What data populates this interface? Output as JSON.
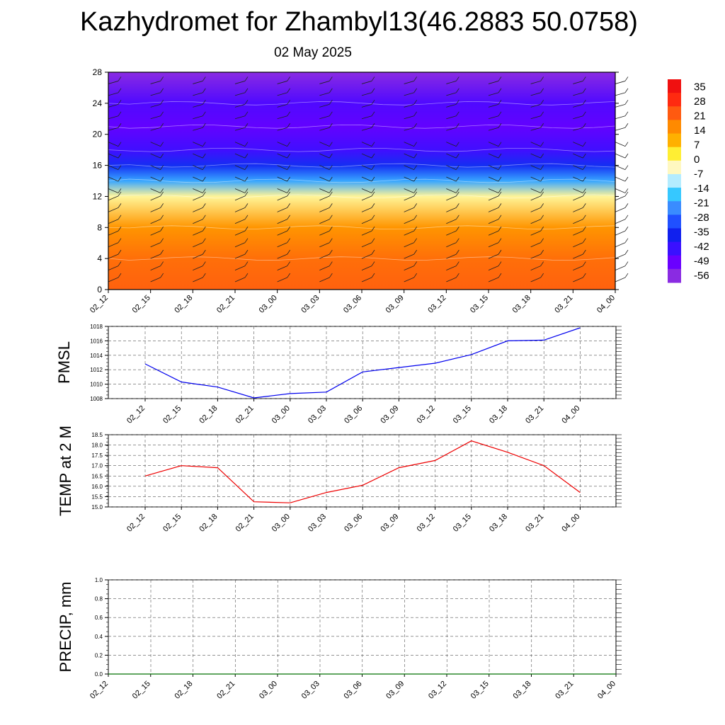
{
  "title": "Kazhydromet for Zhambyl13(46.2883 50.0758)",
  "subtitle": "02 May 2025",
  "time_labels": [
    "02_12",
    "02_15",
    "02_18",
    "02_21",
    "03_00",
    "03_03",
    "03_06",
    "03_09",
    "03_12",
    "03_15",
    "03_18",
    "03_21",
    "04_00"
  ],
  "colorbar": {
    "labels": [
      "35",
      "28",
      "21",
      "14",
      "7",
      "0",
      "-7",
      "-14",
      "-21",
      "-28",
      "-35",
      "-42",
      "-49",
      "-56"
    ]
  },
  "chart_data": [
    {
      "type": "heatmap",
      "title": "",
      "xlabel": "",
      "ylabel": "",
      "x": [
        "02_12",
        "02_15",
        "02_18",
        "02_21",
        "03_00",
        "03_03",
        "03_06",
        "03_09",
        "03_12",
        "03_15",
        "03_18",
        "03_21",
        "04_00"
      ],
      "yticks": [
        0,
        4,
        8,
        12,
        16,
        20,
        24,
        28
      ],
      "ylim": [
        0,
        28
      ],
      "levels": [
        -60,
        -56,
        -49,
        -42,
        -35,
        -28,
        -21,
        -14,
        -7,
        0,
        7,
        14,
        21,
        28,
        35
      ],
      "colors": [
        "#8a2be2",
        "#6a00ff",
        "#3a10ff",
        "#1020ee",
        "#2050ff",
        "#3a8cff",
        "#36c8ff",
        "#b4ecff",
        "#fff8c0",
        "#ffee33",
        "#ffb000",
        "#ff8a00",
        "#ff5a10",
        "#ff2a10",
        "#f01010"
      ],
      "temperature_profile_by_height": [
        {
          "height": 0,
          "value": 20
        },
        {
          "height": 4,
          "value": 18
        },
        {
          "height": 8,
          "value": 12
        },
        {
          "height": 12,
          "value": -5
        },
        {
          "height": 14,
          "value": -25
        },
        {
          "height": 16,
          "value": -40
        },
        {
          "height": 18,
          "value": -50
        },
        {
          "height": 21,
          "value": -55
        },
        {
          "height": 24,
          "value": -52
        },
        {
          "height": 28,
          "value": -60
        }
      ],
      "overlay": "wind barbs"
    },
    {
      "type": "line",
      "title": "",
      "xlabel": "",
      "ylabel": "PMSL",
      "categories": [
        "02_12",
        "02_15",
        "02_18",
        "02_21",
        "03_00",
        "03_03",
        "03_06",
        "03_09",
        "03_12",
        "03_15",
        "03_18",
        "03_21",
        "04_00"
      ],
      "values": [
        1012.8,
        1010.3,
        1009.6,
        1008.1,
        1008.7,
        1008.9,
        1011.7,
        1012.3,
        1012.9,
        1014.1,
        1016.0,
        1016.1,
        1017.8
      ],
      "ylim": [
        1008,
        1018
      ],
      "yticks": [
        "1008",
        "1010",
        "1012",
        "1014",
        "1016",
        "1018"
      ],
      "color": "#0000ee",
      "grid": true
    },
    {
      "type": "line",
      "title": "",
      "xlabel": "",
      "ylabel": "TEMP at 2 M",
      "categories": [
        "02_12",
        "02_15",
        "02_18",
        "02_21",
        "03_00",
        "03_03",
        "03_06",
        "03_09",
        "03_12",
        "03_15",
        "03_18",
        "03_21",
        "04_00"
      ],
      "values": [
        16.5,
        17.0,
        16.9,
        15.25,
        15.2,
        15.7,
        16.05,
        16.9,
        17.25,
        18.2,
        17.65,
        17.0,
        15.7
      ],
      "ylim": [
        15.0,
        18.5
      ],
      "yticks": [
        "15.0",
        "15.5",
        "16.0",
        "16.5",
        "17.0",
        "17.5",
        "18.0",
        "18.5"
      ],
      "color": "#ee0000",
      "grid": true
    },
    {
      "type": "line",
      "title": "",
      "xlabel": "",
      "ylabel": "PRECIP, mm",
      "categories": [
        "02_12",
        "02_15",
        "02_18",
        "02_21",
        "03_00",
        "03_03",
        "03_06",
        "03_09",
        "03_12",
        "03_15",
        "03_18",
        "03_21",
        "04_00"
      ],
      "values": [
        0,
        0,
        0,
        0,
        0,
        0,
        0,
        0,
        0,
        0,
        0,
        0,
        0
      ],
      "ylim": [
        0.0,
        1.0
      ],
      "yticks": [
        "0.0",
        "0.2",
        "0.4",
        "0.6",
        "0.8",
        "1.0"
      ],
      "color": "#007000",
      "grid": true
    }
  ]
}
